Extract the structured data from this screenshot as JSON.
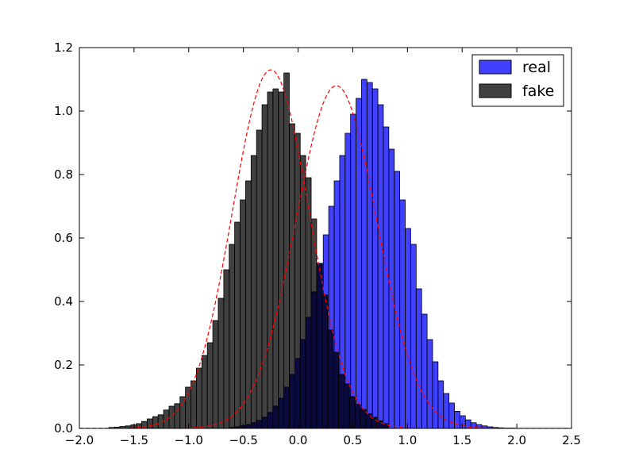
{
  "chart_data": {
    "type": "bar",
    "title": "",
    "xlabel": "",
    "ylabel": "",
    "xlim": [
      -2.0,
      2.5
    ],
    "ylim": [
      0.0,
      1.2
    ],
    "x_ticks": [
      "−2.0",
      "−1.5",
      "−1.0",
      "−0.5",
      "0.0",
      "0.5",
      "1.0",
      "1.5",
      "2.0",
      "2.5"
    ],
    "y_ticks": [
      "0.0",
      "0.2",
      "0.4",
      "0.6",
      "0.8",
      "1.0",
      "1.2"
    ],
    "grid": false,
    "legend_position": "top-right",
    "series": [
      {
        "name": "real",
        "color": "#0000ff",
        "kind": "histogram",
        "bin_width": 0.0496,
        "bins_start": [
          -0.62,
          -0.57,
          -0.52,
          -0.47,
          -0.42,
          -0.37,
          -0.32,
          -0.27,
          -0.22,
          -0.17,
          -0.12,
          -0.07,
          -0.02,
          0.03,
          0.08,
          0.13,
          0.18,
          0.23,
          0.28,
          0.33,
          0.38,
          0.43,
          0.48,
          0.53,
          0.58,
          0.63,
          0.68,
          0.73,
          0.78,
          0.83,
          0.88,
          0.93,
          0.98,
          1.03,
          1.08,
          1.13,
          1.18,
          1.23,
          1.28,
          1.33,
          1.38,
          1.43,
          1.48,
          1.53,
          1.58,
          1.63,
          1.68,
          1.73,
          1.78,
          1.83,
          1.88,
          1.93
        ],
        "values": [
          0.003,
          0.005,
          0.008,
          0.012,
          0.018,
          0.025,
          0.035,
          0.05,
          0.07,
          0.095,
          0.13,
          0.17,
          0.22,
          0.28,
          0.35,
          0.43,
          0.52,
          0.61,
          0.7,
          0.78,
          0.86,
          0.93,
          0.99,
          1.04,
          1.1,
          1.09,
          1.07,
          1.02,
          0.95,
          0.88,
          0.81,
          0.72,
          0.63,
          0.58,
          0.44,
          0.36,
          0.28,
          0.21,
          0.15,
          0.11,
          0.08,
          0.054,
          0.04,
          0.027,
          0.018,
          0.012,
          0.008,
          0.005,
          0.003,
          0.002,
          0.001,
          0.001
        ]
      },
      {
        "name": "fake",
        "color": "#000000",
        "kind": "histogram",
        "bin_width": 0.0496,
        "bins_start": [
          -1.73,
          -1.68,
          -1.63,
          -1.58,
          -1.53,
          -1.48,
          -1.43,
          -1.38,
          -1.33,
          -1.28,
          -1.23,
          -1.18,
          -1.13,
          -1.08,
          -1.03,
          -0.98,
          -0.93,
          -0.88,
          -0.83,
          -0.78,
          -0.73,
          -0.68,
          -0.63,
          -0.58,
          -0.53,
          -0.48,
          -0.43,
          -0.38,
          -0.33,
          -0.28,
          -0.23,
          -0.18,
          -0.13,
          -0.08,
          -0.03,
          0.02,
          0.07,
          0.12,
          0.17,
          0.22,
          0.27,
          0.32,
          0.37,
          0.42,
          0.47,
          0.52,
          0.57,
          0.62,
          0.67,
          0.72,
          0.77
        ],
        "values": [
          0.003,
          0.004,
          0.006,
          0.008,
          0.011,
          0.015,
          0.022,
          0.03,
          0.037,
          0.043,
          0.058,
          0.07,
          0.078,
          0.1,
          0.13,
          0.15,
          0.19,
          0.23,
          0.27,
          0.34,
          0.41,
          0.5,
          0.58,
          0.65,
          0.72,
          0.78,
          0.86,
          0.94,
          1.02,
          1.06,
          1.07,
          1.06,
          1.12,
          0.96,
          0.93,
          0.86,
          0.79,
          0.66,
          0.52,
          0.42,
          0.31,
          0.24,
          0.17,
          0.14,
          0.1,
          0.076,
          0.06,
          0.046,
          0.035,
          0.024,
          0.015
        ]
      }
    ],
    "overlap_color": "#0a0a3c",
    "fit_curves": [
      {
        "series": "real",
        "type": "normal-pdf",
        "mean": 0.35,
        "std": 0.37,
        "peak": 1.08,
        "color": "#ff0000",
        "style": "dashed"
      },
      {
        "series": "fake",
        "type": "normal-pdf",
        "mean": -0.25,
        "std": 0.35,
        "peak": 1.13,
        "color": "#ff0000",
        "style": "dashed"
      }
    ]
  }
}
